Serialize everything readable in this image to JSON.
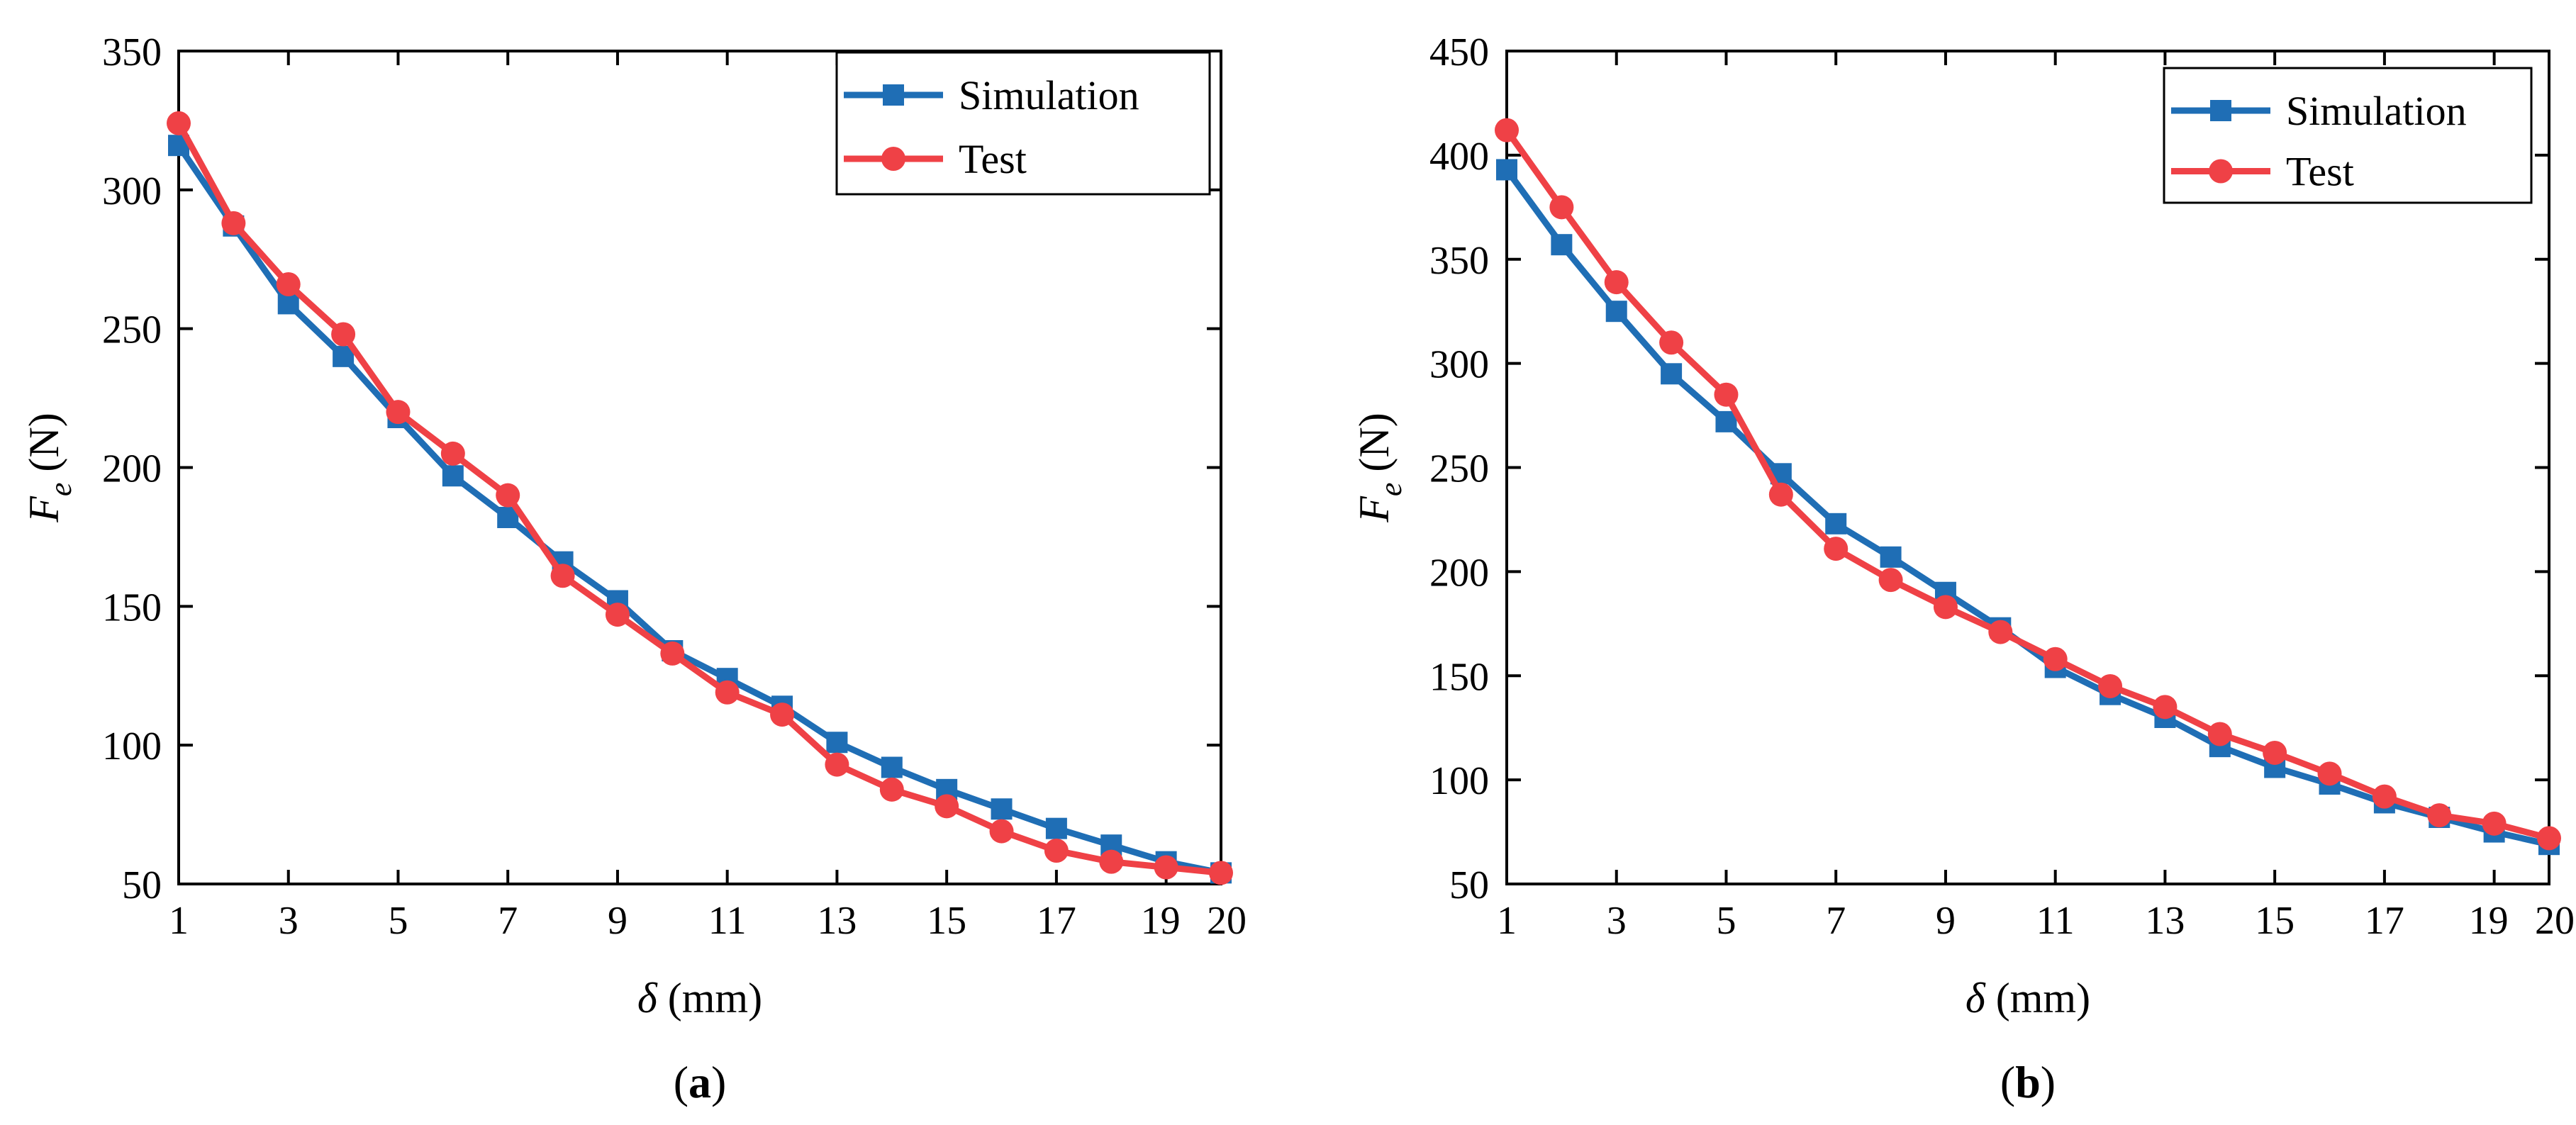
{
  "figure": {
    "colors": {
      "simulation": "#1f6eb5",
      "test": "#ef4146",
      "axis": "#000000"
    },
    "legend_entries": [
      "Simulation",
      "Test"
    ]
  },
  "chart_data": [
    {
      "id": "a",
      "type": "line",
      "caption": {
        "open": "(",
        "letter": "a",
        "close": ")"
      },
      "xlabel": {
        "symbol": "δ",
        "unit": " (mm)"
      },
      "ylabel": {
        "symbol": "F",
        "subscript": "e",
        "unit": " (N)"
      },
      "xlim": [
        1,
        20
      ],
      "ylim": [
        50,
        350
      ],
      "xticks": [
        1,
        3,
        5,
        7,
        9,
        11,
        13,
        15,
        17,
        19,
        20
      ],
      "yticks": [
        50,
        100,
        150,
        200,
        250,
        300,
        350
      ],
      "legend": "top-right",
      "x": [
        1,
        2,
        3,
        4,
        5,
        6,
        7,
        8,
        9,
        10,
        11,
        12,
        13,
        14,
        15,
        16,
        17,
        18,
        19,
        20
      ],
      "series": [
        {
          "name": "Simulation",
          "marker": "square",
          "color": "#1f6eb5",
          "values": [
            316,
            287,
            259,
            240,
            218,
            197,
            182,
            166,
            152,
            134,
            124,
            114,
            101,
            92,
            84,
            77,
            70,
            64,
            58,
            54
          ]
        },
        {
          "name": "Test",
          "marker": "circle",
          "color": "#ef4146",
          "values": [
            324,
            288,
            266,
            248,
            220,
            205,
            190,
            161,
            147,
            133,
            119,
            111,
            93,
            84,
            78,
            69,
            62,
            58,
            56,
            54
          ]
        }
      ]
    },
    {
      "id": "b",
      "type": "line",
      "caption": {
        "open": "(",
        "letter": "b",
        "close": ")"
      },
      "xlabel": {
        "symbol": "δ",
        "unit": " (mm)"
      },
      "ylabel": {
        "symbol": "F",
        "subscript": "e",
        "unit": " (N)"
      },
      "xlim": [
        1,
        20
      ],
      "ylim": [
        50,
        450
      ],
      "xticks": [
        1,
        3,
        5,
        7,
        9,
        11,
        13,
        15,
        17,
        19,
        20
      ],
      "yticks": [
        50,
        100,
        150,
        200,
        250,
        300,
        350,
        400,
        450
      ],
      "legend": "top-right",
      "x": [
        1,
        2,
        3,
        4,
        5,
        6,
        7,
        8,
        9,
        10,
        11,
        12,
        13,
        14,
        15,
        16,
        17,
        18,
        19,
        20
      ],
      "series": [
        {
          "name": "Simulation",
          "marker": "square",
          "color": "#1f6eb5",
          "values": [
            393,
            357,
            325,
            295,
            272,
            247,
            223,
            207,
            190,
            173,
            154,
            141,
            130,
            116,
            106,
            98,
            89,
            82,
            75,
            69
          ]
        },
        {
          "name": "Test",
          "marker": "circle",
          "color": "#ef4146",
          "values": [
            412,
            375,
            339,
            310,
            285,
            237,
            211,
            196,
            183,
            171,
            158,
            145,
            135,
            122,
            113,
            103,
            92,
            83,
            79,
            72
          ]
        }
      ]
    }
  ]
}
